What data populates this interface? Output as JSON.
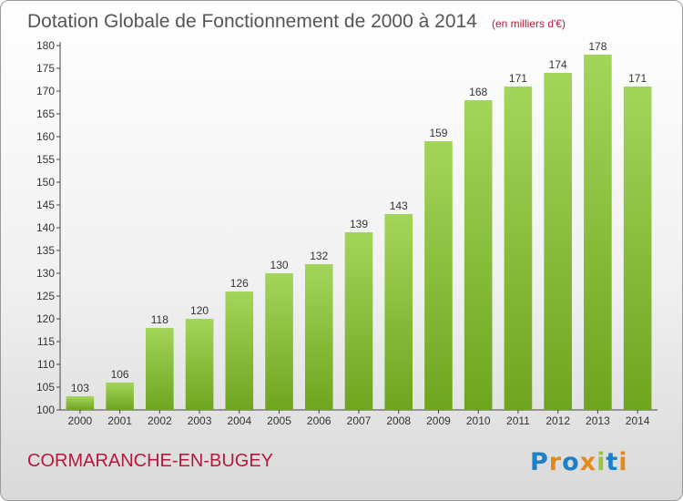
{
  "chart_data": {
    "type": "bar",
    "title": "Dotation Globale de Fonctionnement de 2000 à 2014",
    "subtitle": "(en milliers d'€)",
    "categories": [
      "2000",
      "2001",
      "2002",
      "2003",
      "2004",
      "2005",
      "2006",
      "2007",
      "2008",
      "2009",
      "2010",
      "2011",
      "2012",
      "2013",
      "2014"
    ],
    "values": [
      103,
      106,
      118,
      120,
      126,
      130,
      132,
      139,
      143,
      159,
      168,
      171,
      174,
      178,
      171
    ],
    "ylim": [
      100,
      180
    ],
    "ytick_step": 5,
    "grid": false,
    "legend": "none"
  },
  "footer": {
    "place": "CORMARANCHE-EN-BUGEY",
    "brand": "Proxiti"
  },
  "colors": {
    "title": "#555555",
    "place": "#b5193c",
    "bar_light": "#a3d55a",
    "bar_dark": "#6ea51f",
    "background_top": "#ffffff",
    "background_bottom": "#dcdcdc"
  }
}
